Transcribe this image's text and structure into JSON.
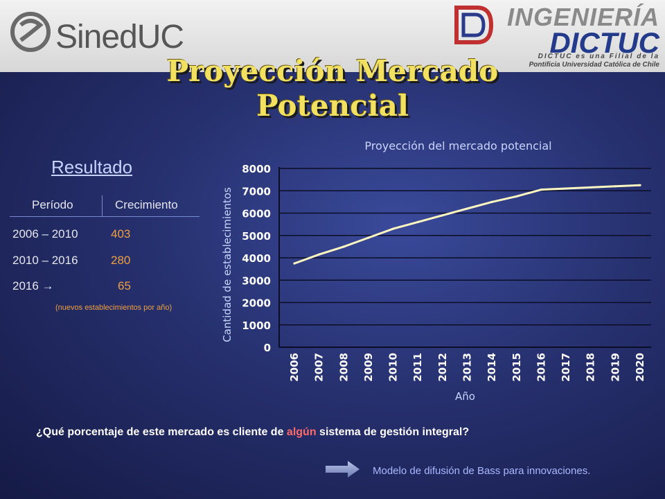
{
  "header": {
    "left_logo_text": "SinedUC",
    "right_logo_line1": "INGENIERÍA",
    "right_logo_line2": "DICTUC",
    "right_logo_line3": "DICTUC es una Filial de la",
    "right_logo_line4": "Pontificia Universidad Católica de Chile"
  },
  "title": "Proyección Mercado Potencial",
  "resultado": {
    "heading": "Resultado",
    "col_periodo": "Período",
    "col_crecimiento": "Crecimiento",
    "rows": [
      {
        "periodo": "2006 – 2010",
        "crecimiento": "403"
      },
      {
        "periodo": "2010 – 2016",
        "crecimiento": "280"
      },
      {
        "periodo": "2016 →",
        "crecimiento": "65"
      }
    ],
    "note": "(nuevos establecimientos por año)"
  },
  "question": {
    "before": "¿Qué porcentaje de este mercado es cliente de ",
    "highlight": "algún",
    "after": " sistema de gestión integral?"
  },
  "footer_link": "Modelo de difusión de Bass para innovaciones.",
  "colors": {
    "title": "#f2e060",
    "line": "#fff7c0",
    "accent": "#f0a040",
    "highlight": "#ff6a6a"
  },
  "chart_data": {
    "type": "line",
    "title": "Proyección del mercado potencial",
    "xlabel": "Año",
    "ylabel": "Cantidad de establecimientos",
    "ylim": [
      0,
      8000
    ],
    "yticks": [
      0,
      1000,
      2000,
      3000,
      4000,
      5000,
      6000,
      7000,
      8000
    ],
    "categories": [
      "2006",
      "2007",
      "2008",
      "2009",
      "2010",
      "2011",
      "2012",
      "2013",
      "2014",
      "2015",
      "2016",
      "2017",
      "2018",
      "2019",
      "2020"
    ],
    "grid": true,
    "series": [
      {
        "values": [
          3750,
          4150,
          4500,
          4900,
          5300,
          5600,
          5900,
          6200,
          6500,
          6750,
          7050,
          7100,
          7150,
          7200,
          7250
        ]
      }
    ]
  }
}
